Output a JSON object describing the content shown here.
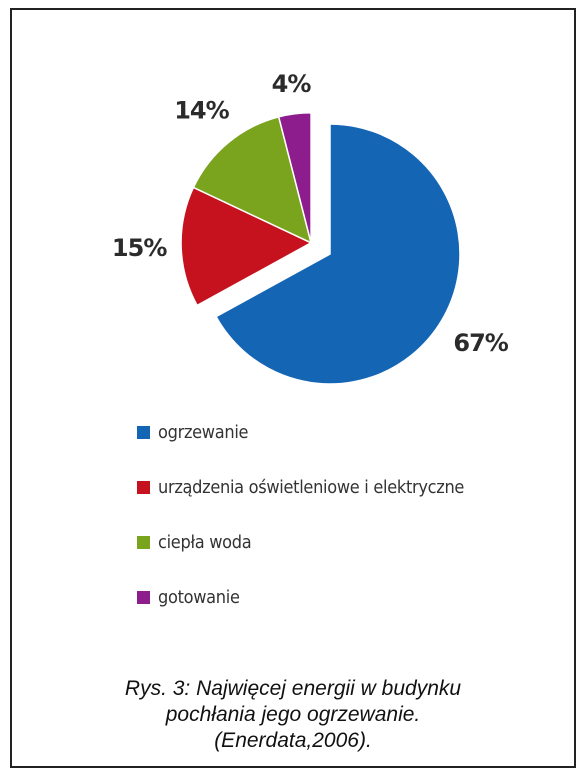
{
  "chart_data": {
    "type": "pie",
    "slices": [
      {
        "label": "ogrzewanie",
        "value": 67,
        "display": "67%",
        "color": "#1565b5",
        "exploded": false
      },
      {
        "label": "urządzenia oświetleniowe i elektryczne",
        "value": 15,
        "display": "15%",
        "color": "#c6121f",
        "exploded": true
      },
      {
        "label": "ciepła woda",
        "value": 14,
        "display": "14%",
        "color": "#7aa31e",
        "exploded": true
      },
      {
        "label": "gotowanie",
        "value": 4,
        "display": "4%",
        "color": "#8d1d8c",
        "exploded": true
      }
    ],
    "legend_position": "bottom"
  },
  "caption": {
    "line1": "Rys. 3: Najwięcej energii w budynku",
    "line2": "pochłania jego ogrzewanie.",
    "line3": "(Enerdata,2006)."
  }
}
